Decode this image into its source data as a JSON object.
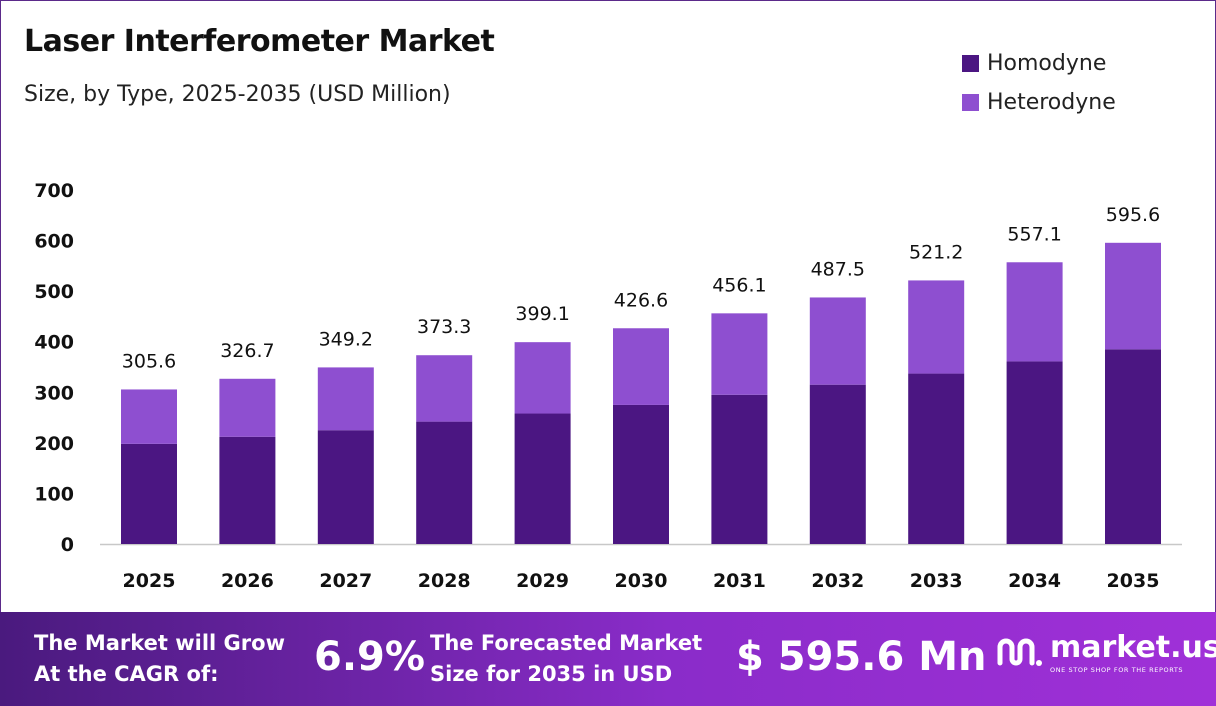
{
  "header": {
    "title": "Laser Interferometer Market",
    "subtitle": "Size, by Type, 2025-2035 (USD Million)"
  },
  "legend": [
    {
      "label": "Homodyne",
      "color": "#4b1682"
    },
    {
      "label": "Heterodyne",
      "color": "#8e4fd0"
    }
  ],
  "chart_data": {
    "type": "bar",
    "stacked": true,
    "categories": [
      "2025",
      "2026",
      "2027",
      "2028",
      "2029",
      "2030",
      "2031",
      "2032",
      "2033",
      "2034",
      "2035"
    ],
    "series": [
      {
        "name": "Homodyne",
        "color": "#4b1682",
        "values": [
          198,
          212,
          225,
          242,
          258,
          275,
          295,
          315,
          337,
          361,
          385
        ]
      },
      {
        "name": "Heterodyne",
        "color": "#8e4fd0",
        "values": [
          107.6,
          114.7,
          124.2,
          131.3,
          141.1,
          151.6,
          161.1,
          172.5,
          184.2,
          196.1,
          210.6
        ]
      }
    ],
    "totals": [
      305.6,
      326.7,
      349.2,
      373.3,
      399.1,
      426.6,
      456.1,
      487.5,
      521.2,
      557.1,
      595.6
    ],
    "total_labels": [
      "305.6",
      "326.7",
      "349.2",
      "373.3",
      "399.1",
      "426.6",
      "456.1",
      "487.5",
      "521.2",
      "557.1",
      "595.6"
    ],
    "y_ticks": [
      "0",
      "100",
      "200",
      "300",
      "400",
      "500",
      "600",
      "700"
    ],
    "ylim": [
      0,
      700
    ],
    "grid": false,
    "legend_position": "top-right"
  },
  "footer": {
    "cagr_text_line1": "The Market will Grow",
    "cagr_text_line2": "At the CAGR of:",
    "cagr_value": "6.9%",
    "forecast_text_line1": "The Forecasted Market",
    "forecast_text_line2": "Size for 2035 in USD",
    "forecast_value": "$ 595.6 Mn",
    "brand_name": "market.us",
    "brand_tagline": "ONE STOP SHOP FOR THE REPORTS"
  }
}
